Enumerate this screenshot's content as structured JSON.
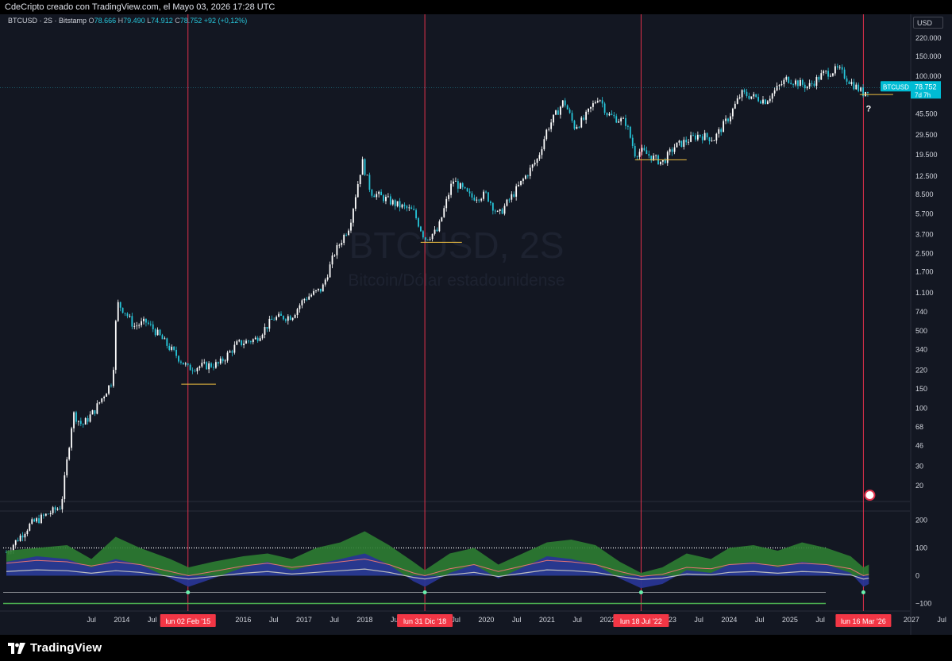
{
  "header": {
    "caption": "CdeCripto creado con TradingView.com, el Mayo 03, 2026 17:28 UTC"
  },
  "legend": {
    "symbol": "BTCUSD · 2S · Bitstamp",
    "o_label": "O",
    "o": "78.666",
    "h_label": "H",
    "h": "79.490",
    "l_label": "L",
    "l": "74.912",
    "c_label": "C",
    "c": "78.752",
    "change": "+92 (+0,12%)"
  },
  "currency": "USD",
  "watermark": {
    "title": "BTCUSD, 2S",
    "subtitle": "Bitcoin/Dólar estadounidense"
  },
  "price_tag": {
    "symbol": "BTCUSD",
    "price": "78.752",
    "countdown": "7d 7h"
  },
  "question_mark": "?",
  "footer": {
    "brand": "TradingView"
  },
  "colors": {
    "bg": "#131722",
    "up": "#ffffff",
    "down": "#26c6da",
    "support": "#f0c040",
    "vline": "#e0314b",
    "accent": "#26c6da"
  },
  "chart_data": [
    {
      "type": "candlestick",
      "symbol": "BTCUSD",
      "timeframe": "2S",
      "scale": "log",
      "y_ticks": [
        20,
        30,
        46,
        68,
        100,
        150,
        220,
        340,
        500,
        740,
        1100,
        1700,
        2500,
        3700,
        5700,
        8500,
        12500,
        19500,
        29500,
        45500,
        100000,
        150000,
        220000
      ],
      "y_tick_labels": [
        "20",
        "30",
        "46",
        "68",
        "100",
        "150",
        "220",
        "340",
        "500",
        "740",
        "1.100",
        "1.700",
        "2.500",
        "3.700",
        "5.700",
        "8.500",
        "12.500",
        "19.500",
        "29.500",
        "45.500",
        "100.000",
        "150.000",
        "220.000"
      ],
      "x_ticks": [
        {
          "t": 2013.5,
          "label": "Jul"
        },
        {
          "t": 2014.0,
          "label": "2014"
        },
        {
          "t": 2014.5,
          "label": "Jul"
        },
        {
          "t": 2016.0,
          "label": "2016"
        },
        {
          "t": 2016.5,
          "label": "Jul"
        },
        {
          "t": 2017.0,
          "label": "2017"
        },
        {
          "t": 2017.5,
          "label": "Jul"
        },
        {
          "t": 2018.0,
          "label": "2018"
        },
        {
          "t": 2018.5,
          "label": "Jul"
        },
        {
          "t": 2019.5,
          "label": "Jul"
        },
        {
          "t": 2020.0,
          "label": "2020"
        },
        {
          "t": 2020.5,
          "label": "Jul"
        },
        {
          "t": 2021.0,
          "label": "2021"
        },
        {
          "t": 2021.5,
          "label": "Jul"
        },
        {
          "t": 2022.0,
          "label": "2022"
        },
        {
          "t": 2023.0,
          "label": "2023"
        },
        {
          "t": 2023.5,
          "label": "Jul"
        },
        {
          "t": 2024.0,
          "label": "2024"
        },
        {
          "t": 2024.5,
          "label": "Jul"
        },
        {
          "t": 2025.0,
          "label": "2025"
        },
        {
          "t": 2025.5,
          "label": "Jul"
        },
        {
          "t": 2027.0,
          "label": "2027"
        },
        {
          "t": 2027.5,
          "label": "Jul"
        }
      ],
      "date_markers": [
        {
          "t": 2015.09,
          "label": "lun 02 Feb '15"
        },
        {
          "t": 2018.99,
          "label": "lun 31 Dic '18"
        },
        {
          "t": 2022.55,
          "label": "lun 18 Jul '22"
        },
        {
          "t": 2026.21,
          "label": "lun 16 Mar '26"
        }
      ],
      "price_path": [
        [
          2012.1,
          5
        ],
        [
          2012.5,
          9
        ],
        [
          2013.0,
          13
        ],
        [
          2013.2,
          90
        ],
        [
          2013.35,
          70
        ],
        [
          2013.55,
          95
        ],
        [
          2013.85,
          180
        ],
        [
          2013.92,
          900
        ],
        [
          2014.05,
          750
        ],
        [
          2014.2,
          550
        ],
        [
          2014.4,
          600
        ],
        [
          2014.55,
          500
        ],
        [
          2014.75,
          370
        ],
        [
          2014.95,
          280
        ],
        [
          2015.09,
          230
        ],
        [
          2015.3,
          240
        ],
        [
          2015.6,
          250
        ],
        [
          2015.9,
          380
        ],
        [
          2016.2,
          420
        ],
        [
          2016.5,
          650
        ],
        [
          2016.8,
          680
        ],
        [
          2017.0,
          970
        ],
        [
          2017.3,
          1200
        ],
        [
          2017.5,
          2500
        ],
        [
          2017.75,
          4500
        ],
        [
          2017.96,
          17000
        ],
        [
          2018.1,
          9000
        ],
        [
          2018.3,
          8000
        ],
        [
          2018.5,
          7000
        ],
        [
          2018.8,
          6000
        ],
        [
          2018.99,
          3400
        ],
        [
          2019.2,
          4000
        ],
        [
          2019.45,
          11500
        ],
        [
          2019.75,
          8000
        ],
        [
          2020.0,
          8500
        ],
        [
          2020.2,
          5500
        ],
        [
          2020.5,
          9500
        ],
        [
          2020.85,
          18000
        ],
        [
          2021.0,
          33000
        ],
        [
          2021.28,
          60000
        ],
        [
          2021.45,
          35000
        ],
        [
          2021.6,
          40000
        ],
        [
          2021.85,
          66000
        ],
        [
          2022.0,
          45000
        ],
        [
          2022.3,
          38000
        ],
        [
          2022.45,
          20000
        ],
        [
          2022.55,
          21000
        ],
        [
          2022.9,
          16500
        ],
        [
          2023.1,
          23000
        ],
        [
          2023.5,
          29500
        ],
        [
          2023.75,
          27000
        ],
        [
          2024.0,
          43000
        ],
        [
          2024.2,
          70000
        ],
        [
          2024.6,
          60000
        ],
        [
          2024.95,
          95000
        ],
        [
          2025.3,
          80000
        ],
        [
          2025.55,
          105000
        ],
        [
          2025.8,
          115000
        ],
        [
          2026.0,
          88000
        ],
        [
          2026.21,
          70000
        ],
        [
          2026.3,
          78752
        ]
      ],
      "supports": [
        {
          "t0": 2014.98,
          "t1": 2015.55,
          "price": 165
        },
        {
          "t0": 2018.92,
          "t1": 2019.6,
          "price": 3150
        },
        {
          "t0": 2022.45,
          "t1": 2023.3,
          "price": 17500
        },
        {
          "t0": 2026.15,
          "t1": 2026.7,
          "price": 68000
        }
      ],
      "last_price": 78752
    },
    {
      "type": "area",
      "name": "oscillator",
      "y_ticks": [
        200,
        100,
        0,
        -100
      ],
      "y_tick_labels": [
        "200",
        "100",
        "0",
        "−100"
      ],
      "ylim": [
        -110,
        210
      ],
      "upper_level": 100,
      "lower_level": -60,
      "bottom_level": -100,
      "wave": [
        [
          2012.1,
          50
        ],
        [
          2012.6,
          70
        ],
        [
          2013.1,
          60
        ],
        [
          2013.5,
          30
        ],
        [
          2013.9,
          60
        ],
        [
          2014.3,
          40
        ],
        [
          2014.8,
          -10
        ],
        [
          2015.1,
          -40
        ],
        [
          2015.5,
          -10
        ],
        [
          2016.0,
          30
        ],
        [
          2016.4,
          50
        ],
        [
          2016.8,
          20
        ],
        [
          2017.2,
          40
        ],
        [
          2017.6,
          60
        ],
        [
          2018.0,
          80
        ],
        [
          2018.4,
          40
        ],
        [
          2018.8,
          -20
        ],
        [
          2018.99,
          -40
        ],
        [
          2019.4,
          10
        ],
        [
          2019.8,
          40
        ],
        [
          2020.2,
          -10
        ],
        [
          2020.6,
          30
        ],
        [
          2021.0,
          70
        ],
        [
          2021.4,
          60
        ],
        [
          2021.8,
          40
        ],
        [
          2022.2,
          -10
        ],
        [
          2022.55,
          -45
        ],
        [
          2022.9,
          -30
        ],
        [
          2023.3,
          20
        ],
        [
          2023.7,
          10
        ],
        [
          2024.0,
          40
        ],
        [
          2024.4,
          50
        ],
        [
          2024.8,
          30
        ],
        [
          2025.2,
          50
        ],
        [
          2025.6,
          40
        ],
        [
          2026.0,
          10
        ],
        [
          2026.21,
          -40
        ],
        [
          2026.3,
          -30
        ]
      ],
      "green_cloud": [
        [
          2012.1,
          90
        ],
        [
          2012.6,
          100
        ],
        [
          2013.1,
          110
        ],
        [
          2013.5,
          60
        ],
        [
          2013.9,
          140
        ],
        [
          2014.3,
          100
        ],
        [
          2014.8,
          60
        ],
        [
          2015.1,
          30
        ],
        [
          2015.5,
          50
        ],
        [
          2016.0,
          70
        ],
        [
          2016.4,
          80
        ],
        [
          2016.8,
          60
        ],
        [
          2017.2,
          100
        ],
        [
          2017.6,
          120
        ],
        [
          2018.0,
          160
        ],
        [
          2018.4,
          110
        ],
        [
          2018.8,
          50
        ],
        [
          2018.99,
          20
        ],
        [
          2019.4,
          80
        ],
        [
          2019.8,
          100
        ],
        [
          2020.2,
          40
        ],
        [
          2020.6,
          80
        ],
        [
          2021.0,
          120
        ],
        [
          2021.4,
          130
        ],
        [
          2021.8,
          110
        ],
        [
          2022.2,
          50
        ],
        [
          2022.55,
          10
        ],
        [
          2022.9,
          30
        ],
        [
          2023.3,
          80
        ],
        [
          2023.7,
          60
        ],
        [
          2024.0,
          100
        ],
        [
          2024.4,
          110
        ],
        [
          2024.8,
          90
        ],
        [
          2025.2,
          120
        ],
        [
          2025.6,
          100
        ],
        [
          2026.0,
          70
        ],
        [
          2026.21,
          30
        ],
        [
          2026.3,
          40
        ]
      ]
    }
  ]
}
